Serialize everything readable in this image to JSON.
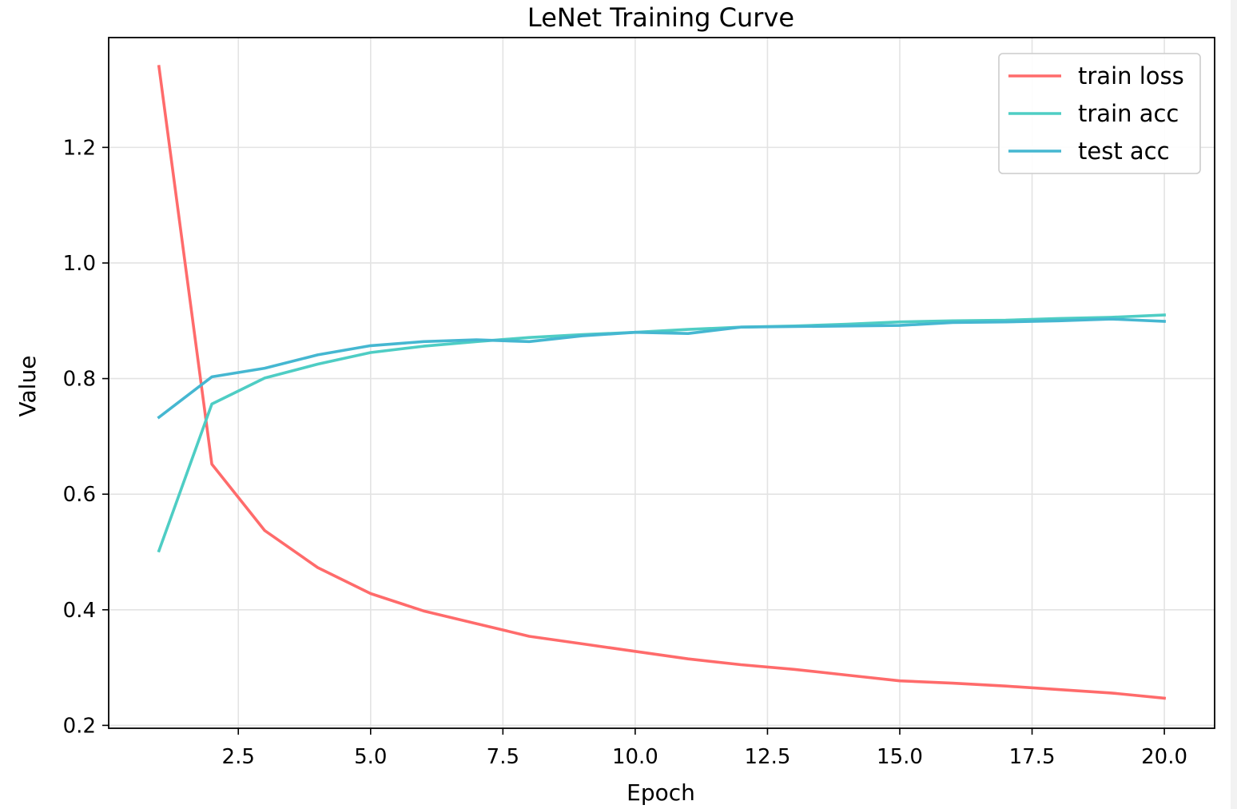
{
  "chart_data": {
    "type": "line",
    "title": "LeNet Training Curve",
    "xlabel": "Epoch",
    "ylabel": "Value",
    "xlim": [
      0.05,
      20.95
    ],
    "ylim": [
      0.195,
      1.39
    ],
    "grid": true,
    "legend_position": "top-right",
    "x_ticks": [
      2.5,
      5.0,
      7.5,
      10.0,
      12.5,
      15.0,
      17.5,
      20.0
    ],
    "x_tick_labels": [
      "2.5",
      "5.0",
      "7.5",
      "10.0",
      "12.5",
      "15.0",
      "17.5",
      "20.0"
    ],
    "y_ticks": [
      0.2,
      0.4,
      0.6,
      0.8,
      1.0,
      1.2
    ],
    "y_tick_labels": [
      "0.2",
      "0.4",
      "0.6",
      "0.8",
      "1.0",
      "1.2"
    ],
    "x": [
      1,
      2,
      3,
      4,
      5,
      6,
      7,
      8,
      9,
      10,
      11,
      12,
      13,
      14,
      15,
      16,
      17,
      18,
      19,
      20
    ],
    "series": [
      {
        "name": "train loss",
        "color": "#ff6b6b",
        "values": [
          1.34,
          0.652,
          0.537,
          0.473,
          0.428,
          0.398,
          0.376,
          0.354,
          0.341,
          0.328,
          0.315,
          0.305,
          0.297,
          0.287,
          0.277,
          0.273,
          0.268,
          0.262,
          0.256,
          0.247
        ]
      },
      {
        "name": "train acc",
        "color": "#4ecdc4",
        "values": [
          0.502,
          0.756,
          0.801,
          0.825,
          0.845,
          0.856,
          0.864,
          0.871,
          0.876,
          0.88,
          0.885,
          0.889,
          0.891,
          0.894,
          0.898,
          0.9,
          0.901,
          0.904,
          0.906,
          0.91
        ]
      },
      {
        "name": "test acc",
        "color": "#45b7d1",
        "values": [
          0.733,
          0.803,
          0.818,
          0.841,
          0.857,
          0.864,
          0.867,
          0.864,
          0.874,
          0.88,
          0.878,
          0.889,
          0.89,
          0.891,
          0.892,
          0.897,
          0.898,
          0.9,
          0.903,
          0.899
        ]
      }
    ]
  }
}
